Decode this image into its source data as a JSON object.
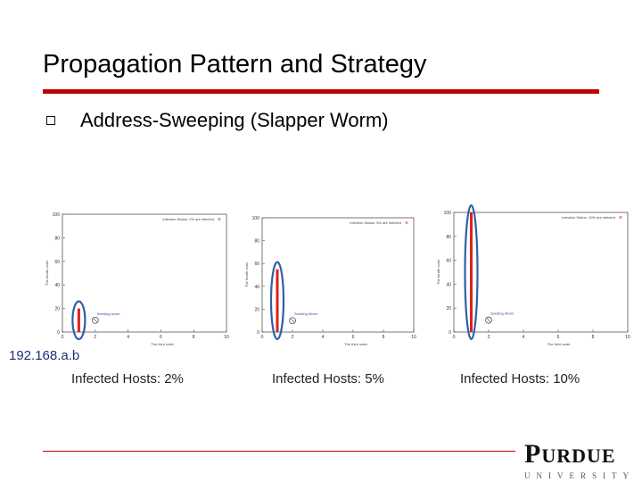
{
  "slide": {
    "title": "Propagation Pattern and Strategy",
    "bullet": "Address-Sweeping (Slapper Worm)",
    "ip_label": "192.168.a.b",
    "logo": {
      "main_first": "P",
      "main_rest": "URDUE",
      "sub": "UNIVERSITY"
    }
  },
  "colors": {
    "title_rule": "#c00000",
    "bar": "#e0201a",
    "ellipse": "#2f5fa8",
    "legend_text": "#3a3aa8"
  },
  "chart_data": [
    {
      "type": "bar",
      "caption": "Infected Hosts: 2%",
      "header": "Infection Status: 2% are infected",
      "legend": "Seeding worm",
      "xlabel": "The third octet",
      "ylabel": "The fourth octet",
      "x_ticks": [
        "0",
        "2",
        "4",
        "6",
        "8",
        "10"
      ],
      "y_ticks": [
        "0",
        "20",
        "40",
        "60",
        "80",
        "100"
      ],
      "xlim": [
        0,
        10
      ],
      "ylim": [
        0,
        100
      ],
      "bars": [
        {
          "x": 1,
          "y": 20
        }
      ],
      "seed": {
        "x": 2,
        "y": 10
      }
    },
    {
      "type": "bar",
      "caption": "Infected Hosts: 5%",
      "header": "Infection Status: 5% are infected",
      "legend": "Seeding Worm",
      "xlabel": "The third octet",
      "ylabel": "The fourth octet",
      "x_ticks": [
        "0",
        "2",
        "4",
        "6",
        "8",
        "10"
      ],
      "y_ticks": [
        "0",
        "20",
        "40",
        "60",
        "80",
        "100"
      ],
      "xlim": [
        0,
        10
      ],
      "ylim": [
        0,
        100
      ],
      "bars": [
        {
          "x": 1,
          "y": 55
        }
      ],
      "seed": {
        "x": 2,
        "y": 10
      }
    },
    {
      "type": "bar",
      "caption": "Infected Hosts: 10%",
      "header": "Infection Status: 10% are infected",
      "legend": "Seeding Worm",
      "xlabel": "The third octet",
      "ylabel": "The fourth octet",
      "x_ticks": [
        "0",
        "2",
        "4",
        "6",
        "8",
        "10"
      ],
      "y_ticks": [
        "0",
        "20",
        "40",
        "60",
        "80",
        "100"
      ],
      "xlim": [
        0,
        10
      ],
      "ylim": [
        0,
        100
      ],
      "bars": [
        {
          "x": 1,
          "y": 100
        }
      ],
      "seed": {
        "x": 2,
        "y": 10
      }
    }
  ]
}
